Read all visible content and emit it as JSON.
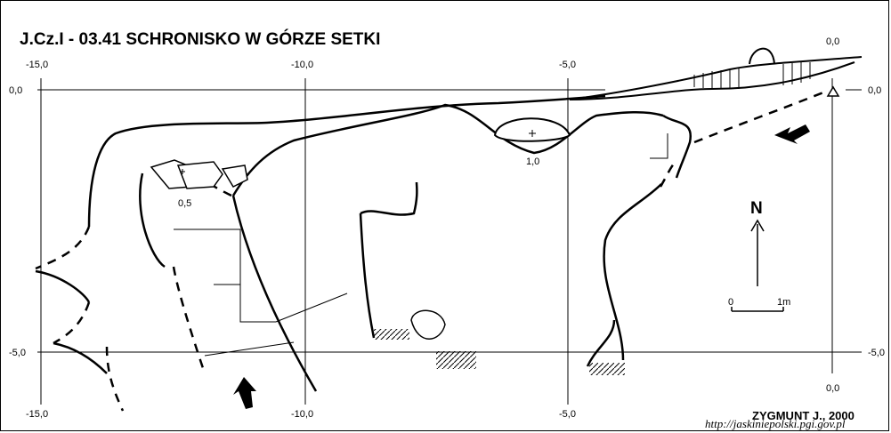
{
  "title": "J.Cz.I - 03.41  SCHRONISKO W GÓRZE SETKI",
  "grid": {
    "top_x": [
      "-15,0",
      "-10,0",
      "-5,0",
      "0,0"
    ],
    "bottom_x": [
      "-15,0",
      "-10,0",
      "-5,0",
      "0,0"
    ],
    "left_y": [
      "0,0",
      "-5,0"
    ],
    "right_y": [
      "0,0",
      "-5,0"
    ]
  },
  "depths": {
    "pit": "1,0",
    "blocks": "0,5"
  },
  "north_label": "N",
  "scale": {
    "start": "0",
    "end": "1m"
  },
  "author": "ZYGMUNT J., 2000",
  "source_url": "http://jaskiniepolski.pgi.gov.pl",
  "colors": {
    "ink": "#000000",
    "background": "#ffffff"
  }
}
